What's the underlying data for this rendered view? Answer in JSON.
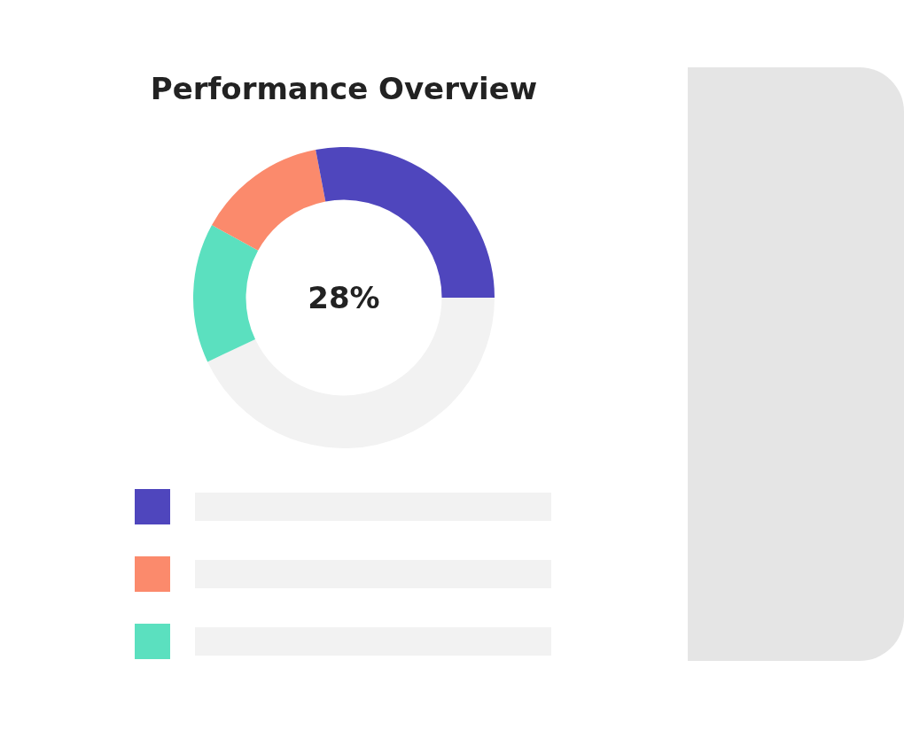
{
  "chart_data": {
    "type": "donut",
    "title": "Performance Overview",
    "categories": [
      null,
      null,
      null,
      null
    ],
    "values": [
      28,
      14,
      15,
      43
    ],
    "colors": [
      "#4f46bd",
      "#fb8a6c",
      "#5be0bf",
      "#f2f2f2"
    ],
    "annotations": [
      "28%"
    ]
  }
}
